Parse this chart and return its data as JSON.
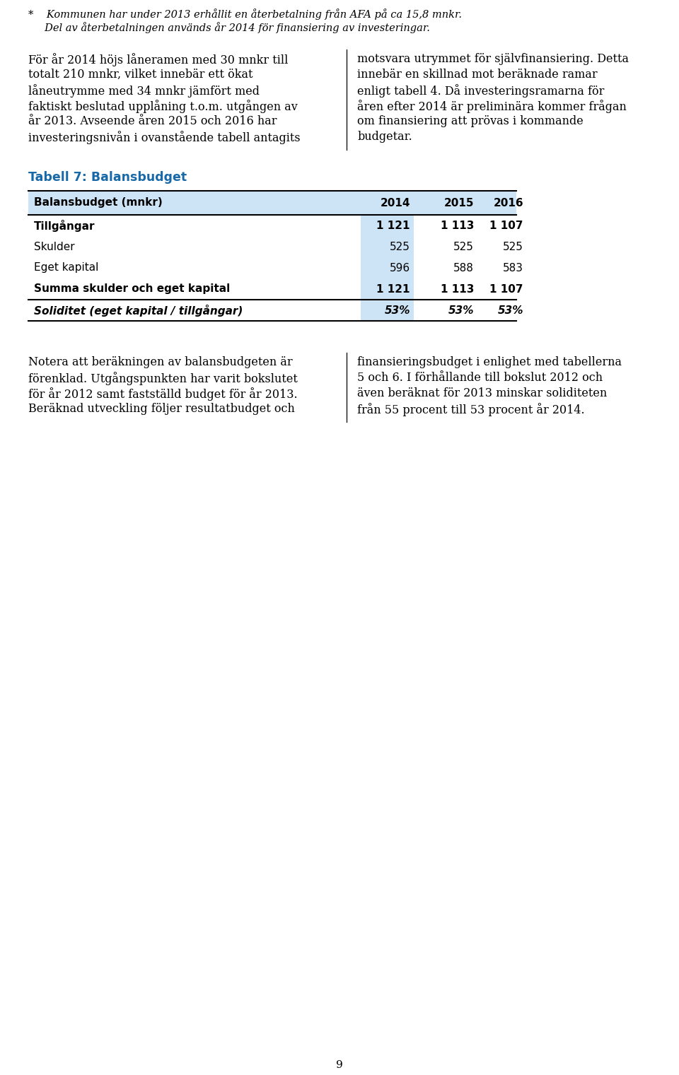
{
  "background_color": "#ffffff",
  "page_number": "9",
  "fn_line1": "*    Kommunen har under 2013 erhållit en återbetalning från AFA på ca 15,8 mnkr.",
  "fn_line2": "     Del av återbetalningen används år 2014 för finansiering av investeringar.",
  "left1_lines": [
    "För år 2014 höjs låneramen med 30 mnkr till",
    "totalt 210 mnkr, vilket innebär ett ökat",
    "låneutrymme med 34 mnkr jämfört med",
    "faktiskt beslutad upplåning t.o.m. utgången av",
    "år 2013. Avseende åren 2015 och 2016 har",
    "investeringsnivån i ovanstående tabell antagits"
  ],
  "right1_lines": [
    "motsvara utrymmet för självfinansiering. Detta",
    "innebär en skillnad mot beräknade ramar",
    "enligt tabell 4. Då investeringsramarna för",
    "åren efter 2014 är preliminära kommer frågan",
    "om finansiering att prövas i kommande",
    "budgetar."
  ],
  "table_title": "Tabell 7: Balansbudget",
  "table_title_color": "#1869a8",
  "table_header": [
    "Balansbudget (mnkr)",
    "2014",
    "2015",
    "2016"
  ],
  "table_rows": [
    [
      "Tillgångar",
      "1 121",
      "1 113",
      "1 107"
    ],
    [
      "Skulder",
      "525",
      "525",
      "525"
    ],
    [
      "Eget kapital",
      "596",
      "588",
      "583"
    ],
    [
      "Summa skulder och eget kapital",
      "1 121",
      "1 113",
      "1 107"
    ],
    [
      "Soliditet (eget kapital / tillgångar)",
      "53%",
      "53%",
      "53%"
    ]
  ],
  "bold_rows": [
    0,
    3,
    4
  ],
  "italic_rows": [
    4
  ],
  "highlight_color": "#cce4f6",
  "left2_lines": [
    "Notera att beräkningen av balansbudgeten är",
    "förenklad. Utgångspunkten har varit bokslutet",
    "för år 2012 samt fastställd budget för år 2013.",
    "Beräknad utveckling följer resultatbudget och"
  ],
  "right2_lines": [
    "finansieringsbudget i enlighet med tabellerna",
    "5 och 6. I förhållande till bokslut 2012 och",
    "även beräknat för 2013 minskar soliditeten",
    "från 55 procent till 53 procent år 2014."
  ]
}
